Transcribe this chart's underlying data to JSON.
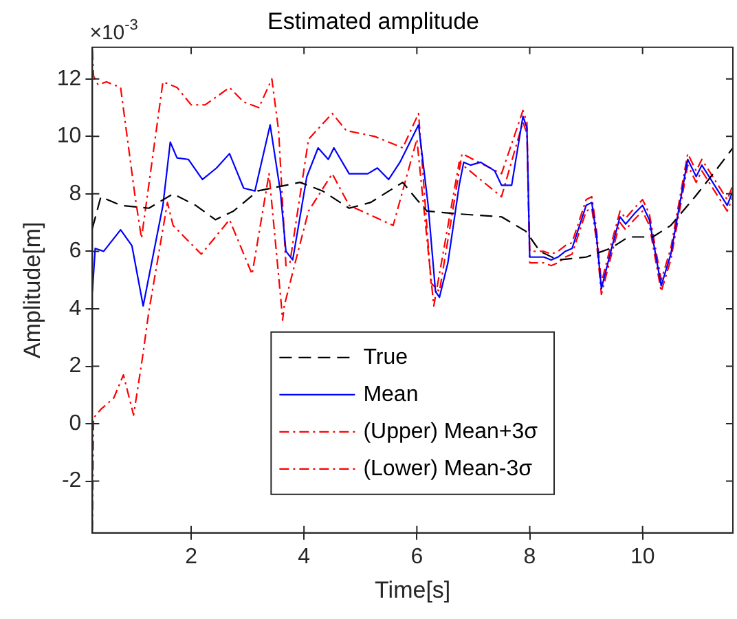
{
  "chart_data": {
    "type": "line",
    "title": "Estimated amplitude",
    "xlabel": "Time[s]",
    "ylabel": "Amplitude[m]",
    "annotations": [
      "×10$^{-3}$"
    ],
    "xlim": [
      0.25,
      11.6
    ],
    "xticks": [
      2,
      4,
      6,
      8,
      10
    ],
    "ylim": [
      -3.8,
      13.1
    ],
    "yticks": [
      -2,
      0,
      2,
      4,
      6,
      8,
      10,
      12
    ],
    "grid": false,
    "legend": "bottom",
    "marker": "none",
    "series": [
      {
        "name": "True",
        "color": "#000000",
        "line_style": "dashed",
        "x": [
          0.25,
          0.4,
          0.75,
          1.25,
          1.68,
          2.08,
          2.43,
          2.75,
          3.18,
          3.93,
          4.33,
          4.8,
          5.18,
          5.75,
          6.0,
          6.18,
          6.75,
          7.5,
          7.93,
          8.18,
          8.5,
          9.0,
          9.43,
          9.75,
          10.18,
          10.5,
          10.93,
          11.33,
          11.6
        ],
        "values": [
          6.8,
          7.9,
          7.6,
          7.5,
          8.0,
          7.6,
          7.1,
          7.4,
          8.1,
          8.4,
          8.1,
          7.5,
          7.7,
          8.4,
          7.8,
          7.4,
          7.3,
          7.2,
          6.7,
          6.0,
          5.7,
          5.8,
          6.1,
          6.5,
          6.5,
          6.9,
          7.9,
          8.9,
          9.6
        ]
      },
      {
        "name": "Mean",
        "color": "#0000ff",
        "line_style": "solid",
        "x": [
          0.25,
          0.3,
          0.45,
          0.75,
          0.95,
          1.15,
          1.5,
          1.63,
          1.75,
          1.95,
          2.2,
          2.45,
          2.68,
          2.93,
          3.13,
          3.4,
          3.58,
          3.68,
          3.8,
          4.05,
          4.25,
          4.43,
          4.53,
          4.8,
          5.13,
          5.3,
          5.5,
          5.7,
          6.03,
          6.2,
          6.33,
          6.4,
          6.55,
          6.75,
          6.83,
          6.95,
          7.13,
          7.38,
          7.5,
          7.68,
          7.88,
          7.95,
          8.0,
          8.25,
          8.38,
          8.5,
          8.63,
          8.75,
          9.0,
          9.1,
          9.18,
          9.27,
          9.45,
          9.6,
          9.7,
          9.85,
          10.0,
          10.12,
          10.33,
          10.5,
          10.7,
          10.8,
          10.95,
          11.05,
          11.5,
          11.6
        ],
        "values": [
          4.6,
          6.1,
          6.0,
          6.75,
          6.2,
          4.1,
          7.6,
          9.8,
          9.25,
          9.2,
          8.5,
          8.9,
          9.4,
          8.2,
          8.1,
          10.4,
          8.1,
          6.0,
          5.7,
          8.6,
          9.6,
          9.2,
          9.6,
          8.7,
          8.7,
          8.9,
          8.5,
          9.1,
          10.4,
          7.6,
          4.6,
          4.4,
          5.6,
          8.3,
          9.1,
          9.0,
          9.1,
          8.8,
          8.3,
          8.3,
          10.7,
          10.3,
          5.8,
          5.8,
          5.7,
          5.8,
          6.0,
          6.1,
          7.6,
          7.7,
          6.6,
          4.7,
          6.1,
          7.2,
          6.95,
          7.3,
          7.6,
          7.1,
          4.8,
          5.9,
          8.1,
          9.2,
          8.6,
          9.0,
          7.6,
          8.1
        ]
      },
      {
        "name": "(Upper) Mean+3σ",
        "color": "#ff0000",
        "line_style": "dotted",
        "x": [
          0.25,
          0.27,
          0.35,
          0.5,
          0.75,
          1.0,
          1.12,
          1.5,
          1.75,
          2.0,
          2.25,
          2.68,
          2.93,
          3.2,
          3.43,
          3.55,
          3.68,
          3.75,
          4.08,
          4.5,
          4.75,
          5.25,
          5.75,
          6.03,
          6.25,
          6.4,
          6.8,
          7.5,
          7.88,
          7.95,
          8.0,
          8.25,
          8.38,
          8.5,
          8.63,
          8.75,
          9.0,
          9.1,
          9.18,
          9.27,
          9.45,
          9.6,
          9.7,
          9.85,
          10.0,
          10.12,
          10.33,
          10.5,
          10.7,
          10.8,
          10.95,
          11.05,
          11.5,
          11.6
        ],
        "values": [
          13.0,
          12.1,
          11.8,
          11.9,
          11.7,
          8.0,
          6.45,
          11.9,
          11.7,
          11.1,
          11.1,
          11.7,
          11.2,
          11.0,
          12.0,
          10.2,
          5.5,
          5.6,
          9.9,
          10.8,
          10.2,
          10.0,
          9.6,
          10.8,
          4.9,
          4.6,
          9.4,
          8.7,
          10.9,
          10.5,
          6.0,
          6.0,
          5.9,
          6.0,
          6.2,
          6.3,
          7.8,
          7.9,
          6.8,
          4.9,
          6.3,
          7.4,
          7.15,
          7.5,
          7.8,
          7.3,
          5.0,
          6.1,
          8.3,
          9.4,
          8.8,
          9.2,
          7.8,
          8.3
        ]
      },
      {
        "name": "(Lower) Mean-3σ",
        "color": "#ff0000",
        "line_style": "dotted",
        "x": [
          0.25,
          0.27,
          0.4,
          0.63,
          0.8,
          0.98,
          1.13,
          1.25,
          1.58,
          1.68,
          2.18,
          2.68,
          3.08,
          3.38,
          3.6,
          3.62,
          3.65,
          3.83,
          4.08,
          4.5,
          4.8,
          5.58,
          6.0,
          6.3,
          6.75,
          7.5,
          7.88,
          7.95,
          8.0,
          8.25,
          8.38,
          8.5,
          8.63,
          8.75,
          9.0,
          9.1,
          9.18,
          9.27,
          9.45,
          9.6,
          9.7,
          9.85,
          10.0,
          10.12,
          10.33,
          10.5,
          10.7,
          10.8,
          10.95,
          11.05,
          11.5,
          11.6
        ],
        "values": [
          -3.7,
          0.2,
          0.5,
          0.9,
          1.7,
          0.3,
          2.2,
          3.9,
          7.7,
          6.9,
          5.9,
          7.1,
          5.2,
          8.7,
          4.1,
          3.6,
          4.1,
          5.5,
          7.4,
          8.7,
          7.6,
          6.9,
          9.9,
          4.1,
          9.1,
          7.9,
          10.5,
          10.1,
          5.6,
          5.6,
          5.5,
          5.6,
          5.8,
          5.9,
          7.4,
          7.5,
          6.4,
          4.5,
          5.9,
          7.0,
          6.75,
          7.1,
          7.4,
          6.9,
          4.6,
          5.7,
          7.9,
          9.0,
          8.4,
          8.8,
          7.4,
          7.9
        ]
      }
    ]
  }
}
